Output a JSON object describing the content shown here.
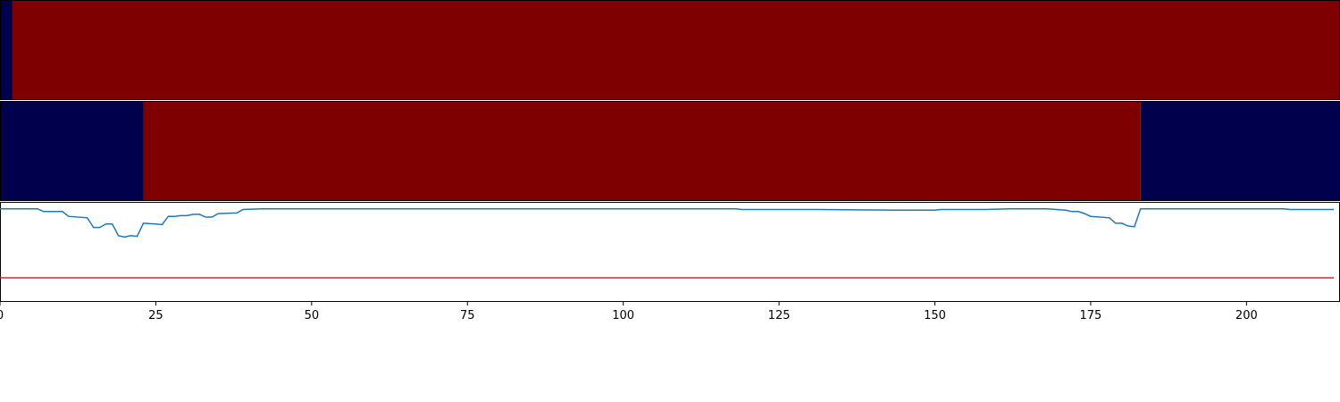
{
  "chart_data": [
    {
      "type": "heatmap",
      "title": "",
      "row": 1,
      "description_values": "binary state per sample (0 = low, 1 = high)",
      "colors": {
        "low": "#00004c",
        "high": "#7f0000"
      },
      "segments": [
        {
          "start": 0,
          "end": 2,
          "value": 0
        },
        {
          "start": 2,
          "end": 215,
          "value": 1
        }
      ]
    },
    {
      "type": "heatmap",
      "title": "",
      "row": 2,
      "colors": {
        "low": "#00004c",
        "high": "#7f0000"
      },
      "segments": [
        {
          "start": 0,
          "end": 23,
          "value": 0
        },
        {
          "start": 23,
          "end": 183,
          "value": 1
        },
        {
          "start": 183,
          "end": 215,
          "value": 0
        }
      ]
    },
    {
      "type": "line",
      "title": "",
      "xlabel": "",
      "ylabel": "",
      "xlim": [
        0,
        215
      ],
      "ylim": [
        -1.35,
        0.1
      ],
      "x_ticks": [
        0,
        25,
        50,
        75,
        100,
        125,
        150,
        175,
        200
      ],
      "grid": false,
      "series": [
        {
          "color": "#1f77b4",
          "points": [
            [
              0,
              0.0
            ],
            [
              6,
              0.0
            ],
            [
              7,
              -0.04
            ],
            [
              10,
              -0.04
            ],
            [
              11,
              -0.11
            ],
            [
              14,
              -0.13
            ],
            [
              15,
              -0.27
            ],
            [
              16,
              -0.27
            ],
            [
              17,
              -0.22
            ],
            [
              18,
              -0.22
            ],
            [
              19,
              -0.39
            ],
            [
              20,
              -0.41
            ],
            [
              21,
              -0.39
            ],
            [
              22,
              -0.4
            ],
            [
              23,
              -0.21
            ],
            [
              25,
              -0.22
            ],
            [
              26,
              -0.23
            ],
            [
              27,
              -0.11
            ],
            [
              28,
              -0.11
            ],
            [
              29,
              -0.1
            ],
            [
              30,
              -0.1
            ],
            [
              31,
              -0.08
            ],
            [
              32,
              -0.08
            ],
            [
              33,
              -0.12
            ],
            [
              34,
              -0.12
            ],
            [
              35,
              -0.07
            ],
            [
              38,
              -0.06
            ],
            [
              39,
              -0.01
            ],
            [
              42,
              0.0
            ],
            [
              118,
              0.0
            ],
            [
              119,
              -0.01
            ],
            [
              131,
              -0.01
            ],
            [
              144,
              -0.02
            ],
            [
              146,
              -0.02
            ],
            [
              150,
              -0.02
            ],
            [
              151,
              -0.01
            ],
            [
              158,
              -0.01
            ],
            [
              162,
              0.0
            ],
            [
              168,
              0.0
            ],
            [
              171,
              -0.02
            ],
            [
              172,
              -0.04
            ],
            [
              173,
              -0.04
            ],
            [
              174,
              -0.07
            ],
            [
              175,
              -0.11
            ],
            [
              178,
              -0.13
            ],
            [
              179,
              -0.21
            ],
            [
              180,
              -0.21
            ],
            [
              181,
              -0.25
            ],
            [
              182,
              -0.26
            ],
            [
              183,
              0.0
            ],
            [
              206,
              0.0
            ],
            [
              207,
              -0.01
            ],
            [
              214,
              -0.01
            ]
          ]
        },
        {
          "color": "#d62728",
          "points": [
            [
              0,
              -1.0
            ],
            [
              214,
              -1.0
            ]
          ]
        }
      ]
    }
  ]
}
